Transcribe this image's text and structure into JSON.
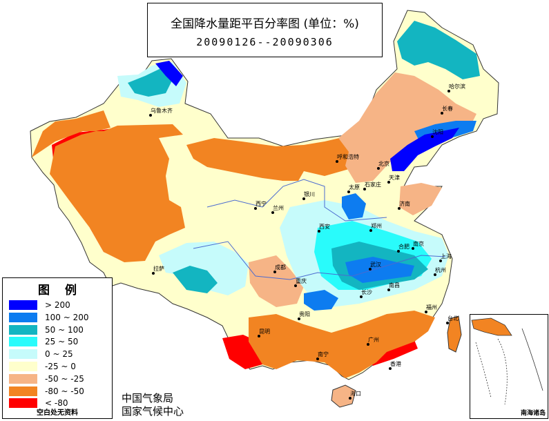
{
  "title": {
    "line1": "全国降水量距平百分率图 (单位：%)",
    "line2": "20090126--20090306"
  },
  "legend": {
    "title": "图例",
    "items": [
      {
        "label": "> 200",
        "color": "#0000ff"
      },
      {
        "label": "100 ~ 200",
        "color": "#0d7cf0"
      },
      {
        "label": "50 ~ 100",
        "color": "#13b5c1"
      },
      {
        "label": "25 ~ 50",
        "color": "#29fbfb"
      },
      {
        "label": "0 ~ 25",
        "color": "#c6fbfb"
      },
      {
        "label": "-25 ~ 0",
        "color": "#ffffcc"
      },
      {
        "label": "-50 ~ -25",
        "color": "#f6b486"
      },
      {
        "label": "-80 ~ -50",
        "color": "#f28422"
      },
      {
        "label": "< -80",
        "color": "#ff0000"
      }
    ],
    "note": "空白处无资料"
  },
  "agency": {
    "line1": "中国气象局",
    "line2": "国家气候中心"
  },
  "inset": {
    "label": "南海诸岛"
  },
  "cities": [
    {
      "id": "urumqi",
      "name": "乌鲁木齐"
    },
    {
      "id": "harbin",
      "name": "哈尔滨"
    },
    {
      "id": "changchun",
      "name": "长春"
    },
    {
      "id": "shenyang",
      "name": "沈阳"
    },
    {
      "id": "hohhot",
      "name": "呼和浩特"
    },
    {
      "id": "beijing",
      "name": "北京"
    },
    {
      "id": "tianjin",
      "name": "天津"
    },
    {
      "id": "shijiazhuang",
      "name": "石家庄"
    },
    {
      "id": "taiyuan",
      "name": "太原"
    },
    {
      "id": "yinchuan",
      "name": "银川"
    },
    {
      "id": "jinan",
      "name": "济南"
    },
    {
      "id": "xining",
      "name": "西宁"
    },
    {
      "id": "lanzhou",
      "name": "兰州"
    },
    {
      "id": "xian",
      "name": "西安"
    },
    {
      "id": "zhengzhou",
      "name": "郑州"
    },
    {
      "id": "hefei",
      "name": "合肥"
    },
    {
      "id": "nanjing",
      "name": "南京"
    },
    {
      "id": "shanghai",
      "name": "上海"
    },
    {
      "id": "hangzhou",
      "name": "杭州"
    },
    {
      "id": "lhasa",
      "name": "拉萨"
    },
    {
      "id": "chengdu",
      "name": "成都"
    },
    {
      "id": "chongqing",
      "name": "重庆"
    },
    {
      "id": "wuhan",
      "name": "武汉"
    },
    {
      "id": "changsha",
      "name": "长沙"
    },
    {
      "id": "nanchang",
      "name": "南昌"
    },
    {
      "id": "fuzhou",
      "name": "福州"
    },
    {
      "id": "guiyang",
      "name": "贵阳"
    },
    {
      "id": "kunming",
      "name": "昆明"
    },
    {
      "id": "nanning",
      "name": "南宁"
    },
    {
      "id": "guangzhou",
      "name": "广州"
    },
    {
      "id": "hongkong",
      "name": "香港"
    },
    {
      "id": "taibei",
      "name": "台北"
    },
    {
      "id": "haikou",
      "name": "海口"
    }
  ]
}
